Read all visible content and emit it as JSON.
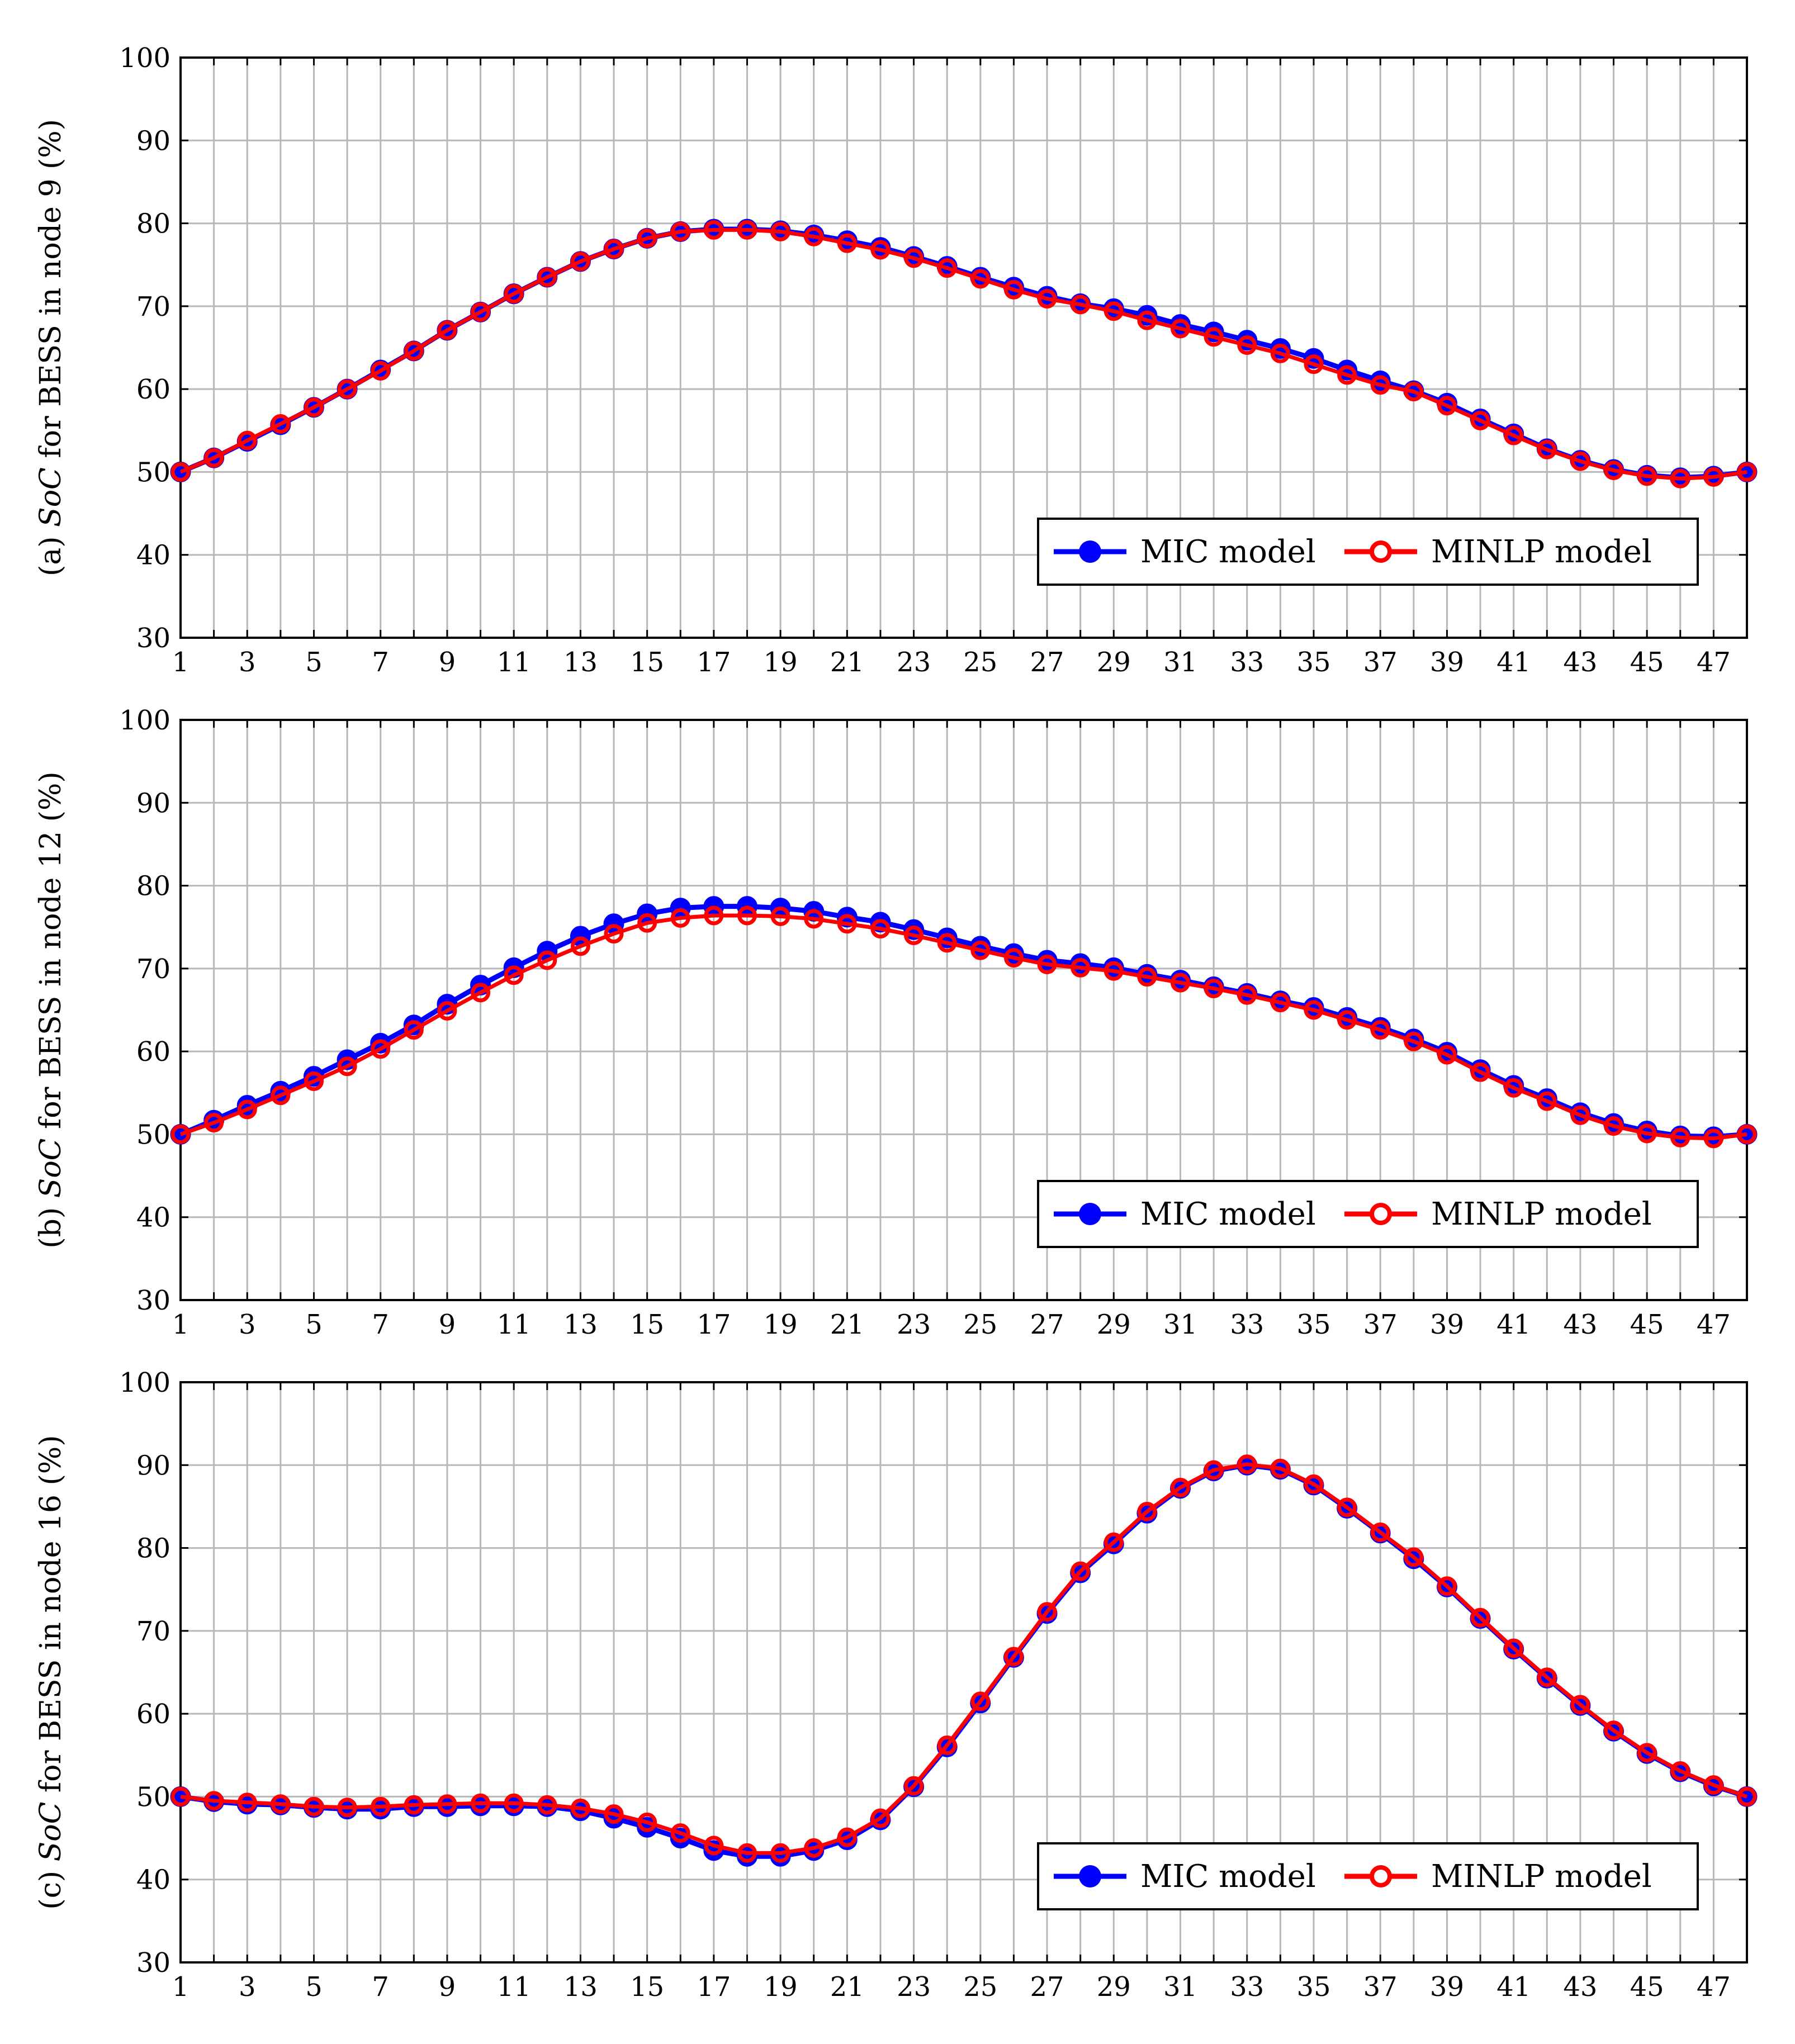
{
  "chart_data": [
    {
      "type": "line",
      "panel_label": "(a)",
      "ylabel_prefix": "(a) ",
      "ylabel_italic": "SoC",
      "ylabel_suffix": " for BESS in node 9 (%)",
      "ylim": [
        30,
        100
      ],
      "yticks": [
        30,
        40,
        50,
        60,
        70,
        80,
        90,
        100
      ],
      "xlim": [
        1,
        48
      ],
      "xticks": [
        1,
        3,
        5,
        7,
        9,
        11,
        13,
        15,
        17,
        19,
        21,
        23,
        25,
        27,
        29,
        31,
        33,
        35,
        37,
        39,
        41,
        43,
        45,
        47
      ],
      "grid": true,
      "legend_position": "bottom-right",
      "x": [
        1,
        2,
        3,
        4,
        5,
        6,
        7,
        8,
        9,
        10,
        11,
        12,
        13,
        14,
        15,
        16,
        17,
        18,
        19,
        20,
        21,
        22,
        23,
        24,
        25,
        26,
        27,
        28,
        29,
        30,
        31,
        32,
        33,
        34,
        35,
        36,
        37,
        38,
        39,
        40,
        41,
        42,
        43,
        44,
        45,
        46,
        47,
        48
      ],
      "series": [
        {
          "name": "MIC model",
          "color": "#0000ff",
          "values": [
            50.0,
            51.7,
            53.7,
            55.7,
            57.8,
            60.0,
            62.3,
            64.6,
            67.1,
            69.3,
            71.5,
            73.5,
            75.4,
            76.9,
            78.2,
            79.0,
            79.3,
            79.3,
            79.1,
            78.6,
            77.9,
            77.1,
            76.0,
            74.8,
            73.5,
            72.3,
            71.2,
            70.3,
            69.7,
            68.9,
            67.8,
            66.9,
            65.9,
            64.9,
            63.7,
            62.3,
            61.0,
            59.8,
            58.3,
            56.4,
            54.6,
            52.8,
            51.4,
            50.3,
            49.6,
            49.3,
            49.5,
            50.0
          ]
        },
        {
          "name": "MINLP model",
          "color": "#ff0000",
          "values": [
            50.0,
            51.7,
            53.8,
            55.8,
            57.8,
            60.0,
            62.2,
            64.6,
            67.1,
            69.3,
            71.5,
            73.5,
            75.4,
            76.9,
            78.2,
            79.0,
            79.2,
            79.2,
            79.0,
            78.4,
            77.6,
            76.8,
            75.8,
            74.6,
            73.3,
            72.0,
            70.9,
            70.2,
            69.4,
            68.3,
            67.3,
            66.3,
            65.3,
            64.3,
            63.0,
            61.7,
            60.5,
            59.7,
            58.0,
            56.2,
            54.4,
            52.7,
            51.3,
            50.2,
            49.5,
            49.2,
            49.4,
            50.0
          ]
        }
      ]
    },
    {
      "type": "line",
      "panel_label": "(b)",
      "ylabel_prefix": "(b) ",
      "ylabel_italic": "SoC",
      "ylabel_suffix": " for BESS in node 12 (%)",
      "ylim": [
        30,
        100
      ],
      "yticks": [
        30,
        40,
        50,
        60,
        70,
        80,
        90,
        100
      ],
      "xlim": [
        1,
        48
      ],
      "xticks": [
        1,
        3,
        5,
        7,
        9,
        11,
        13,
        15,
        17,
        19,
        21,
        23,
        25,
        27,
        29,
        31,
        33,
        35,
        37,
        39,
        41,
        43,
        45,
        47
      ],
      "grid": true,
      "legend_position": "bottom-right",
      "x": [
        1,
        2,
        3,
        4,
        5,
        6,
        7,
        8,
        9,
        10,
        11,
        12,
        13,
        14,
        15,
        16,
        17,
        18,
        19,
        20,
        21,
        22,
        23,
        24,
        25,
        26,
        27,
        28,
        29,
        30,
        31,
        32,
        33,
        34,
        35,
        36,
        37,
        38,
        39,
        40,
        41,
        42,
        43,
        44,
        45,
        46,
        47,
        48
      ],
      "series": [
        {
          "name": "MIC model",
          "color": "#0000ff",
          "values": [
            50.0,
            51.7,
            53.5,
            55.2,
            57.0,
            59.0,
            61.0,
            63.2,
            65.7,
            68.0,
            70.1,
            72.1,
            73.9,
            75.4,
            76.6,
            77.3,
            77.5,
            77.5,
            77.3,
            76.9,
            76.2,
            75.6,
            74.7,
            73.7,
            72.7,
            71.8,
            71.0,
            70.6,
            70.1,
            69.3,
            68.6,
            67.8,
            67.0,
            66.1,
            65.3,
            64.1,
            62.9,
            61.5,
            59.9,
            57.8,
            55.9,
            54.3,
            52.6,
            51.3,
            50.4,
            49.8,
            49.7,
            50.0
          ]
        },
        {
          "name": "MINLP model",
          "color": "#ff0000",
          "values": [
            50.0,
            51.4,
            53.0,
            54.7,
            56.4,
            58.2,
            60.3,
            62.6,
            64.9,
            67.1,
            69.2,
            71.0,
            72.7,
            74.2,
            75.5,
            76.1,
            76.4,
            76.4,
            76.3,
            76.0,
            75.4,
            74.8,
            74.0,
            73.1,
            72.2,
            71.3,
            70.5,
            70.1,
            69.7,
            69.0,
            68.3,
            67.6,
            66.8,
            65.9,
            65.0,
            63.8,
            62.6,
            61.2,
            59.6,
            57.5,
            55.6,
            54.0,
            52.3,
            51.0,
            50.1,
            49.6,
            49.5,
            50.0
          ]
        }
      ]
    },
    {
      "type": "line",
      "panel_label": "(c)",
      "ylabel_prefix": "(c) ",
      "ylabel_italic": "SoC",
      "ylabel_suffix": " for BESS in node 16 (%)",
      "ylim": [
        30,
        100
      ],
      "yticks": [
        30,
        40,
        50,
        60,
        70,
        80,
        90,
        100
      ],
      "xlim": [
        1,
        48
      ],
      "xticks": [
        1,
        3,
        5,
        7,
        9,
        11,
        13,
        15,
        17,
        19,
        21,
        23,
        25,
        27,
        29,
        31,
        33,
        35,
        37,
        39,
        41,
        43,
        45,
        47
      ],
      "grid": true,
      "legend_position": "bottom-right",
      "x": [
        1,
        2,
        3,
        4,
        5,
        6,
        7,
        8,
        9,
        10,
        11,
        12,
        13,
        14,
        15,
        16,
        17,
        18,
        19,
        20,
        21,
        22,
        23,
        24,
        25,
        26,
        27,
        28,
        29,
        30,
        31,
        32,
        33,
        34,
        35,
        36,
        37,
        38,
        39,
        40,
        41,
        42,
        43,
        44,
        45,
        46,
        47,
        48
      ],
      "series": [
        {
          "name": "MIC model",
          "color": "#0000ff",
          "values": [
            50.0,
            49.4,
            49.1,
            49.0,
            48.7,
            48.5,
            48.5,
            48.8,
            48.8,
            48.9,
            48.9,
            48.8,
            48.3,
            47.4,
            46.3,
            45.0,
            43.5,
            42.8,
            42.8,
            43.5,
            44.8,
            47.2,
            51.2,
            56.0,
            61.3,
            66.8,
            72.1,
            77.0,
            80.5,
            84.2,
            87.2,
            89.3,
            90.0,
            89.5,
            87.6,
            84.8,
            81.8,
            78.7,
            75.3,
            71.5,
            67.8,
            64.3,
            61.0,
            57.9,
            55.2,
            53.0,
            51.3,
            50.0
          ]
        },
        {
          "name": "MINLP model",
          "color": "#ff0000",
          "values": [
            50.0,
            49.5,
            49.3,
            49.1,
            48.8,
            48.7,
            48.8,
            49.0,
            49.1,
            49.2,
            49.2,
            49.0,
            48.6,
            47.9,
            46.9,
            45.6,
            44.1,
            43.2,
            43.2,
            43.8,
            45.1,
            47.4,
            51.3,
            56.2,
            61.5,
            66.9,
            72.3,
            77.2,
            80.7,
            84.4,
            87.3,
            89.4,
            90.1,
            89.6,
            87.7,
            84.9,
            81.9,
            78.9,
            75.4,
            71.6,
            67.9,
            64.4,
            61.1,
            58.0,
            55.3,
            53.1,
            51.4,
            50.0
          ]
        }
      ]
    }
  ]
}
